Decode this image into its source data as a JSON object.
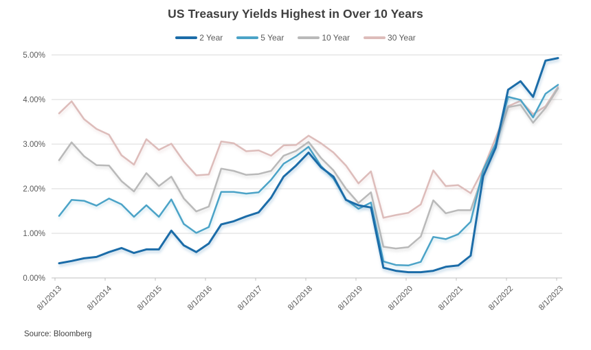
{
  "ui": {
    "source": "Source: Bloomberg"
  },
  "chart_data": {
    "type": "line",
    "title": "US Treasury Yields Highest in Over 10 Years",
    "xlabel": "",
    "ylabel": "",
    "ylim": [
      0,
      5
    ],
    "grid": "horizontal",
    "legend_position": "top",
    "y_tick_labels": [
      "0.00%",
      "1.00%",
      "2.00%",
      "3.00%",
      "4.00%",
      "5.00%"
    ],
    "x_tick_labels": [
      "8/1/2013",
      "8/1/2014",
      "8/1/2015",
      "8/1/2016",
      "8/1/2017",
      "8/1/2018",
      "8/1/2019",
      "8/1/2020",
      "8/1/2021",
      "8/1/2022",
      "8/1/2023"
    ],
    "categories": [
      "8/1/2013",
      "11/1/2013",
      "2/1/2014",
      "5/1/2014",
      "8/1/2014",
      "11/1/2014",
      "2/1/2015",
      "5/1/2015",
      "8/1/2015",
      "11/1/2015",
      "2/1/2016",
      "5/1/2016",
      "8/1/2016",
      "11/1/2016",
      "2/1/2017",
      "5/1/2017",
      "8/1/2017",
      "11/1/2017",
      "2/1/2018",
      "5/1/2018",
      "8/1/2018",
      "11/1/2018",
      "2/1/2019",
      "5/1/2019",
      "8/1/2019",
      "11/1/2019",
      "2/1/2020",
      "5/1/2020",
      "8/1/2020",
      "11/1/2020",
      "2/1/2021",
      "5/1/2021",
      "8/1/2021",
      "11/1/2021",
      "2/1/2022",
      "5/1/2022",
      "8/1/2022",
      "11/1/2022",
      "2/1/2023",
      "5/1/2023",
      "8/1/2023"
    ],
    "series": [
      {
        "name": "2 Year",
        "color": "#1b6ca8",
        "values": [
          0.33,
          0.38,
          0.44,
          0.47,
          0.58,
          0.67,
          0.56,
          0.64,
          0.64,
          1.06,
          0.73,
          0.58,
          0.77,
          1.2,
          1.27,
          1.38,
          1.47,
          1.8,
          2.27,
          2.52,
          2.81,
          2.48,
          2.27,
          1.75,
          1.63,
          1.58,
          0.23,
          0.16,
          0.13,
          0.13,
          0.16,
          0.25,
          0.28,
          0.5,
          2.28,
          2.92,
          4.22,
          4.41,
          4.06,
          4.87,
          4.93
        ]
      },
      {
        "name": "5 Year",
        "color": "#4ba3c7",
        "values": [
          1.39,
          1.75,
          1.73,
          1.62,
          1.78,
          1.65,
          1.37,
          1.63,
          1.37,
          1.76,
          1.21,
          1.01,
          1.14,
          1.93,
          1.93,
          1.89,
          1.92,
          2.2,
          2.56,
          2.73,
          2.94,
          2.51,
          2.23,
          1.76,
          1.55,
          1.69,
          0.37,
          0.29,
          0.28,
          0.36,
          0.92,
          0.87,
          0.98,
          1.26,
          2.42,
          3.01,
          4.06,
          3.99,
          3.6,
          4.13,
          4.33
        ]
      },
      {
        "name": "10 Year",
        "color": "#b9b9b9",
        "values": [
          2.64,
          3.04,
          2.73,
          2.53,
          2.52,
          2.17,
          1.94,
          2.35,
          2.06,
          2.27,
          1.78,
          1.49,
          1.6,
          2.45,
          2.4,
          2.31,
          2.33,
          2.4,
          2.74,
          2.85,
          3.05,
          2.69,
          2.41,
          2.0,
          1.68,
          1.92,
          0.7,
          0.66,
          0.69,
          0.93,
          1.74,
          1.45,
          1.52,
          1.52,
          2.32,
          2.98,
          3.83,
          3.88,
          3.48,
          3.81,
          4.25
        ]
      },
      {
        "name": "30 Year",
        "color": "#ddbcba",
        "values": [
          3.69,
          3.96,
          3.56,
          3.34,
          3.21,
          2.75,
          2.54,
          3.11,
          2.87,
          3.01,
          2.61,
          2.3,
          2.32,
          3.06,
          3.02,
          2.84,
          2.86,
          2.74,
          2.97,
          2.98,
          3.19,
          3.02,
          2.81,
          2.52,
          2.12,
          2.39,
          1.35,
          1.41,
          1.46,
          1.65,
          2.41,
          2.06,
          2.08,
          1.9,
          2.44,
          3.14,
          3.85,
          3.97,
          3.67,
          3.85,
          4.28
        ]
      }
    ],
    "colors": {
      "title": "#3f3f3f",
      "axis_text": "#595959",
      "gridline": "#d9d9d9",
      "axis_line": "#bfbfbf",
      "background": "#ffffff"
    }
  }
}
